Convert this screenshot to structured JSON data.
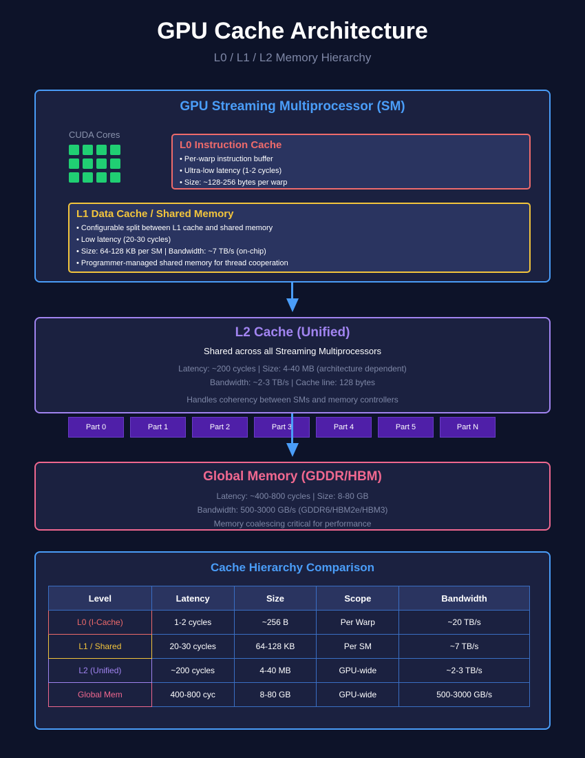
{
  "header": {
    "title": "GPU Cache Architecture",
    "subtitle": "L0 / L1 / L2 Memory Hierarchy"
  },
  "sm": {
    "title": "GPU Streaming Multiprocessor (SM)",
    "cuda_label": "CUDA Cores",
    "cuda_core_count": 12,
    "l0": {
      "title": "L0 Instruction Cache",
      "bullets": [
        "• Per-warp instruction buffer",
        "• Ultra-low latency (1-2 cycles)",
        "• Size: ~128-256 bytes per warp"
      ]
    },
    "l1": {
      "title": "L1 Data Cache / Shared Memory",
      "bullets": [
        "• Configurable split between L1 cache and shared memory",
        "• Low latency (20-30 cycles)",
        "• Size: 64-128 KB per SM | Bandwidth: ~7 TB/s (on-chip)",
        "• Programmer-managed shared memory for thread cooperation"
      ]
    }
  },
  "l2": {
    "title": "L2 Cache (Unified)",
    "shared": "Shared across all Streaming Multiprocessors",
    "line1": "Latency: ~200 cycles | Size: 4-40 MB (architecture dependent)",
    "line2": "Bandwidth: ~2-3 TB/s | Cache line: 128 bytes",
    "line3": "Handles coherency between SMs and memory controllers",
    "partitions": [
      "Part 0",
      "Part 1",
      "Part 2",
      "Part 3",
      "Part 4",
      "Part 5",
      "Part N"
    ]
  },
  "global": {
    "title": "Global Memory (GDDR/HBM)",
    "line1": "Latency: ~400-800 cycles | Size: 8-80 GB",
    "line2": "Bandwidth: 500-3000 GB/s (GDDR6/HBM2e/HBM3)",
    "line3": "Memory coalescing critical for performance"
  },
  "comparison": {
    "title": "Cache Hierarchy Comparison",
    "headers": [
      "Level",
      "Latency",
      "Size",
      "Scope",
      "Bandwidth"
    ],
    "rows": [
      {
        "level": "L0 (I-Cache)",
        "latency": "1-2 cycles",
        "size": "~256 B",
        "scope": "Per Warp",
        "bandwidth": "~20 TB/s",
        "color": "#ef6b6b"
      },
      {
        "level": "L1 / Shared",
        "latency": "20-30 cycles",
        "size": "64-128 KB",
        "scope": "Per SM",
        "bandwidth": "~7 TB/s",
        "color": "#f3c53c"
      },
      {
        "level": "L2 (Unified)",
        "latency": "~200 cycles",
        "size": "4-40 MB",
        "scope": "GPU-wide",
        "bandwidth": "~2-3 TB/s",
        "color": "#a184f0"
      },
      {
        "level": "Global Mem",
        "latency": "400-800 cyc",
        "size": "8-80 GB",
        "scope": "GPU-wide",
        "bandwidth": "500-3000 GB/s",
        "color": "#f0688f"
      }
    ]
  },
  "colors": {
    "sm_accent": "#4a9df8",
    "l0_accent": "#ef6b6b",
    "l1_accent": "#f3c53c",
    "l2_accent": "#a184f0",
    "global_accent": "#f0688f",
    "cuda_core": "#20cf73"
  }
}
